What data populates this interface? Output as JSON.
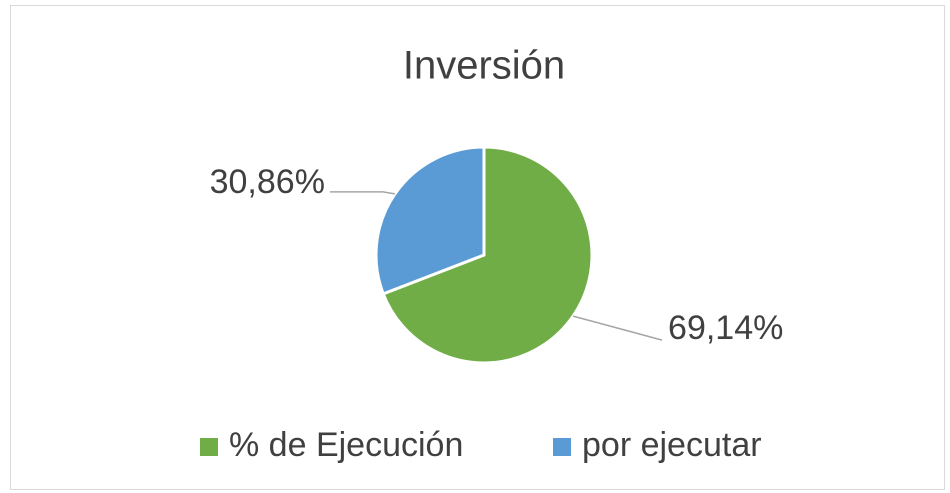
{
  "chart_data": {
    "type": "pie",
    "title": "Inversión",
    "categories": [
      "% de Ejecución",
      "por ejecutar"
    ],
    "values": [
      69.14,
      30.86
    ],
    "value_labels": [
      "69,14%",
      "30,86%"
    ],
    "colors": [
      "#70ad47",
      "#5b9bd5"
    ],
    "legend": "bottom"
  }
}
